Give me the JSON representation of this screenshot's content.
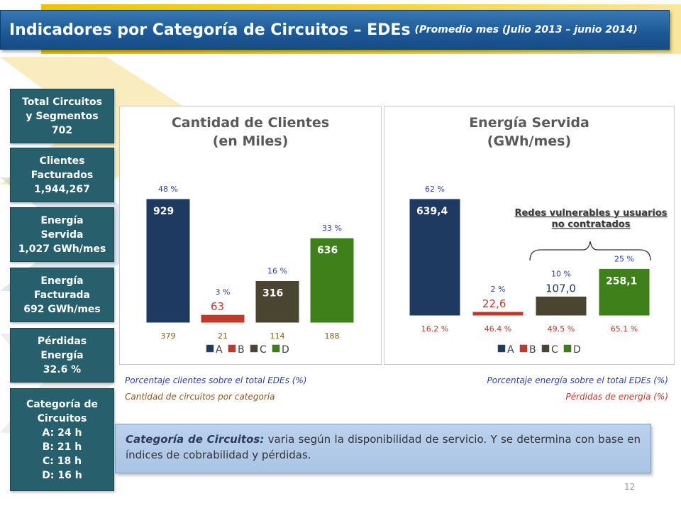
{
  "header": {
    "title": "Indicadores por Categoría de Circuitos – EDEs",
    "subtitle": "(Promedio mes (Julio 2013 – junio 2014)"
  },
  "sidebar": [
    {
      "line1": "Total Circuitos",
      "line2": "y Segmentos",
      "line3": "702"
    },
    {
      "line1": "Clientes",
      "line2": "Facturados",
      "line3": "1,944,267"
    },
    {
      "line1": "Energía",
      "line2": "Servida",
      "line3": "1,027 GWh/mes"
    },
    {
      "line1": "Energía",
      "line2": "Facturada",
      "line3": "692 GWh/mes"
    },
    {
      "line1": "Pérdidas",
      "line2": "Energía",
      "line3": "32.6 %"
    }
  ],
  "categories_box": {
    "title1": "Categoría de",
    "title2": "Circuitos",
    "items": [
      "A: 24 h",
      "B: 21 h",
      "C: 18 h",
      "D: 16 h"
    ]
  },
  "colors": {
    "A": "#1f3a60",
    "B": "#c0392b",
    "C": "#4a4530",
    "D": "#3f7f1a"
  },
  "chart_data": [
    {
      "type": "bar",
      "title": "Cantidad de Clientes",
      "subtitle": "(en Miles)",
      "categories": [
        "A",
        "B",
        "C",
        "D"
      ],
      "values": [
        929,
        63,
        316,
        636
      ],
      "value_labels": [
        "929",
        "63",
        "316",
        "636"
      ],
      "percent_labels": [
        "48 %",
        "3 %",
        "16 %",
        "33 %"
      ],
      "below_labels": [
        "379",
        "21",
        "114",
        "188"
      ],
      "legend": [
        "A",
        "B",
        "C",
        "D"
      ],
      "legend_position": "bottom",
      "ylim": [
        0,
        1000
      ]
    },
    {
      "type": "bar",
      "title": "Energía Servida",
      "subtitle": "(GWh/mes)",
      "categories": [
        "A",
        "B",
        "C",
        "D"
      ],
      "values": [
        639.4,
        22.6,
        107.0,
        258.1
      ],
      "value_labels": [
        "639,4",
        "22,6",
        "107,0",
        "258,1"
      ],
      "percent_labels": [
        "62 %",
        "2 %",
        "10 %",
        "25 %"
      ],
      "below_labels": [
        "16.2 %",
        "46.4 %",
        "49.5 %",
        "65.1 %"
      ],
      "legend": [
        "A",
        "B",
        "C",
        "D"
      ],
      "legend_position": "bottom",
      "ylim": [
        0,
        690
      ]
    }
  ],
  "annotation": {
    "line1": "Redes vulnerables y usuarios",
    "line2": "no contratados"
  },
  "notes": {
    "left1": "Porcentaje clientes sobre el total EDEs (%)",
    "left2": "Cantidad de circuitos por categoría",
    "right1": "Porcentaje energía sobre el total EDEs (%)",
    "right2": "Pérdidas de energía (%)"
  },
  "callout": {
    "label": "Categoría de Circuitos:",
    "text": " varia según la disponibilidad de servicio. Y se determina con base en índices de cobrabilidad y pérdidas."
  },
  "page_number": "12"
}
